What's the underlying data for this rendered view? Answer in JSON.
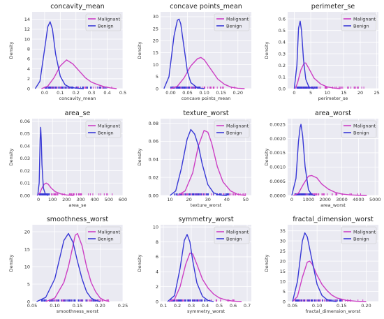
{
  "colors": {
    "malignant": "#cc3fc4",
    "benign": "#3838d6",
    "background": "#eaeaf2",
    "grid": "#ffffff"
  },
  "chart_data": [
    {
      "type": "line",
      "title": "concavity_mean",
      "xlabel": "concavity_mean",
      "ylabel": "Density",
      "xlim": [
        -0.08,
        0.5
      ],
      "ylim": [
        0,
        15.5
      ],
      "xticks": [
        "0.0",
        "0.1",
        "0.2",
        "0.3",
        "0.4",
        "0.5"
      ],
      "xtick_values": [
        0,
        0.1,
        0.2,
        0.3,
        0.4,
        0.5
      ],
      "yticks": [
        "0",
        "2",
        "4",
        "6",
        "8",
        "10",
        "12",
        "14"
      ],
      "ytick_values": [
        0,
        2,
        4,
        6,
        8,
        10,
        12,
        14
      ],
      "legend": "top-right",
      "grid": true,
      "series": [
        {
          "name": "Malignant",
          "x": [
            -0.02,
            0.02,
            0.06,
            0.1,
            0.14,
            0.18,
            0.22,
            0.26,
            0.3,
            0.34,
            0.38,
            0.42,
            0.46
          ],
          "y": [
            0,
            0.5,
            2.2,
            4.6,
            5.8,
            5.0,
            3.6,
            2.2,
            1.3,
            0.8,
            0.4,
            0.15,
            0
          ]
        },
        {
          "name": "Benign",
          "x": [
            -0.06,
            -0.03,
            0.0,
            0.02,
            0.035,
            0.05,
            0.07,
            0.1,
            0.13,
            0.16,
            0.2,
            0.25
          ],
          "y": [
            0,
            1.5,
            8.0,
            12.5,
            13.5,
            12.0,
            7.0,
            2.5,
            0.8,
            0.3,
            0.1,
            0
          ]
        }
      ],
      "rug": {
        "malignant": [
          0.02,
          0.43
        ],
        "benign": [
          0.0,
          0.41
        ]
      }
    },
    {
      "type": "line",
      "title": "concave points_mean",
      "xlabel": "concave points_mean",
      "ylabel": "Density",
      "xlim": [
        -0.03,
        0.24
      ],
      "ylim": [
        0,
        32
      ],
      "xticks": [
        "0.00",
        "0.05",
        "0.10",
        "0.15",
        "0.20"
      ],
      "xtick_values": [
        0,
        0.05,
        0.1,
        0.15,
        0.2
      ],
      "yticks": [
        "0",
        "5",
        "10",
        "15",
        "20",
        "25",
        "30"
      ],
      "ytick_values": [
        0,
        5,
        10,
        15,
        20,
        25,
        30
      ],
      "legend": "top-right",
      "grid": true,
      "series": [
        {
          "name": "Malignant",
          "x": [
            0.0,
            0.02,
            0.04,
            0.06,
            0.08,
            0.09,
            0.1,
            0.12,
            0.14,
            0.16,
            0.18,
            0.2,
            0.22
          ],
          "y": [
            0,
            1.0,
            4.5,
            9.5,
            12.5,
            13.0,
            12.0,
            8.0,
            4.0,
            1.8,
            0.6,
            0.15,
            0
          ]
        },
        {
          "name": "Benign",
          "x": [
            -0.02,
            -0.005,
            0.01,
            0.02,
            0.025,
            0.03,
            0.04,
            0.05,
            0.06,
            0.08,
            0.1
          ],
          "y": [
            0,
            5.0,
            22.0,
            28.5,
            29.0,
            27.0,
            17.0,
            7.0,
            2.5,
            0.3,
            0
          ]
        }
      ],
      "rug": {
        "malignant": [
          0.02,
          0.2
        ],
        "benign": [
          0.0,
          0.09
        ]
      }
    },
    {
      "type": "line",
      "title": "perimeter_se",
      "xlabel": "perimeter_se",
      "ylabel": "Density",
      "xlim": [
        -2,
        25.5
      ],
      "ylim": [
        0,
        0.66
      ],
      "xticks": [
        "0",
        "5",
        "10",
        "15",
        "20",
        "25"
      ],
      "xtick_values": [
        0,
        5,
        10,
        15,
        20,
        25
      ],
      "yticks": [
        "0.0",
        "0.1",
        "0.2",
        "0.3",
        "0.4",
        "0.5",
        "0.6"
      ],
      "ytick_values": [
        0,
        0.1,
        0.2,
        0.3,
        0.4,
        0.5,
        0.6
      ],
      "legend": "top-right",
      "grid": true,
      "series": [
        {
          "name": "Malignant",
          "x": [
            0.3,
            1.0,
            2.0,
            3.0,
            3.5,
            4.5,
            6.0,
            8.0,
            10.0,
            12.0,
            14.0
          ],
          "y": [
            0,
            0.05,
            0.16,
            0.22,
            0.22,
            0.17,
            0.09,
            0.04,
            0.015,
            0.005,
            0
          ]
        },
        {
          "name": "Benign",
          "x": [
            0.0,
            0.8,
            1.3,
            1.8,
            2.2,
            2.8,
            3.5,
            4.5,
            6.0
          ],
          "y": [
            0,
            0.2,
            0.52,
            0.58,
            0.5,
            0.25,
            0.08,
            0.01,
            0
          ]
        }
      ],
      "rug": {
        "malignant": [
          1.0,
          22.0
        ],
        "benign": [
          0.8,
          7.0
        ]
      }
    },
    {
      "type": "line",
      "title": "area_se",
      "xlabel": "area_se",
      "ylabel": "Density",
      "xlim": [
        -45,
        600
      ],
      "ylim": [
        0,
        0.062
      ],
      "xticks": [
        "0",
        "100",
        "200",
        "300",
        "400",
        "500",
        "600"
      ],
      "xtick_values": [
        0,
        100,
        200,
        300,
        400,
        500,
        600
      ],
      "yticks": [
        "0.00",
        "0.01",
        "0.02",
        "0.03",
        "0.04",
        "0.05",
        "0.06"
      ],
      "ytick_values": [
        0,
        0.01,
        0.02,
        0.03,
        0.04,
        0.05,
        0.06
      ],
      "legend": "top-right",
      "grid": true,
      "series": [
        {
          "name": "Malignant",
          "x": [
            -10,
            10,
            25,
            40,
            55,
            70,
            90,
            120,
            160,
            200,
            250
          ],
          "y": [
            0,
            0.002,
            0.006,
            0.009,
            0.01,
            0.009,
            0.006,
            0.003,
            0.0012,
            0.0004,
            0
          ]
        },
        {
          "name": "Benign",
          "x": [
            -5,
            5,
            12,
            16,
            20,
            25,
            35,
            50,
            70
          ],
          "y": [
            0,
            0.01,
            0.045,
            0.055,
            0.045,
            0.025,
            0.006,
            0.0008,
            0
          ]
        }
      ],
      "rug": {
        "malignant": [
          10,
          545
        ],
        "benign": [
          6,
          80
        ]
      }
    },
    {
      "type": "line",
      "title": "texture_worst",
      "xlabel": "texture_worst",
      "ylabel": "Density",
      "xlim": [
        5,
        53
      ],
      "ylim": [
        0,
        0.085
      ],
      "xticks": [
        "10",
        "20",
        "30",
        "40",
        "50"
      ],
      "xtick_values": [
        10,
        20,
        30,
        40,
        50
      ],
      "yticks": [
        "0.00",
        "0.02",
        "0.04",
        "0.06",
        "0.08"
      ],
      "ytick_values": [
        0,
        0.02,
        0.04,
        0.06,
        0.08
      ],
      "legend": "top-right",
      "grid": true,
      "series": [
        {
          "name": "Malignant",
          "x": [
            14,
            18,
            22,
            25,
            28,
            30,
            32,
            35,
            38,
            42,
            46,
            50
          ],
          "y": [
            0,
            0.005,
            0.025,
            0.055,
            0.072,
            0.07,
            0.058,
            0.032,
            0.015,
            0.005,
            0.001,
            0
          ]
        },
        {
          "name": "Benign",
          "x": [
            10,
            13,
            16,
            19,
            21,
            23,
            25,
            27,
            30,
            33,
            36,
            40
          ],
          "y": [
            0,
            0.005,
            0.03,
            0.062,
            0.073,
            0.068,
            0.055,
            0.035,
            0.012,
            0.003,
            0.0005,
            0
          ]
        }
      ],
      "rug": {
        "malignant": [
          16,
          50
        ],
        "benign": [
          12,
          42
        ]
      }
    },
    {
      "type": "line",
      "title": "area_worst",
      "xlabel": "area_worst",
      "ylabel": "Density",
      "xlim": [
        -250,
        5200
      ],
      "ylim": [
        0,
        0.0027
      ],
      "xticks": [
        "0",
        "1000",
        "2000",
        "3000",
        "4000",
        "5000"
      ],
      "xtick_values": [
        0,
        1000,
        2000,
        3000,
        4000,
        5000
      ],
      "yticks": [
        "0.0000",
        "0.0005",
        "0.0010",
        "0.0015",
        "0.0020",
        "0.0025"
      ],
      "ytick_values": [
        0,
        0.0005,
        0.001,
        0.0015,
        0.002,
        0.0025
      ],
      "legend": "top-right",
      "grid": true,
      "series": [
        {
          "name": "Malignant",
          "x": [
            100,
            400,
            700,
            1000,
            1200,
            1500,
            1800,
            2200,
            2600,
            3000,
            3500,
            4000,
            4500
          ],
          "y": [
            0,
            8e-05,
            0.0004,
            0.00068,
            0.0007,
            0.00062,
            0.0004,
            0.00022,
            0.00011,
            5e-05,
            2e-05,
            6e-06,
            0
          ]
        },
        {
          "name": "Benign",
          "x": [
            0,
            250,
            400,
            500,
            550,
            650,
            800,
            1000,
            1200,
            1400
          ],
          "y": [
            0,
            0.0006,
            0.0019,
            0.0024,
            0.0025,
            0.0021,
            0.001,
            0.0002,
            2e-05,
            0
          ]
        }
      ],
      "rug": {
        "malignant": [
          200,
          4300
        ],
        "benign": [
          180,
          1250
        ]
      }
    },
    {
      "type": "line",
      "title": "smoothness_worst",
      "xlabel": "smoothness_worst",
      "ylabel": "Density",
      "xlim": [
        0.05,
        0.25
      ],
      "ylim": [
        0,
        22
      ],
      "xticks": [
        "0.05",
        "0.10",
        "0.15",
        "0.20",
        "0.25"
      ],
      "xtick_values": [
        0.05,
        0.1,
        0.15,
        0.2,
        0.25
      ],
      "yticks": [
        "0",
        "5",
        "10",
        "15",
        "20"
      ],
      "ytick_values": [
        0,
        5,
        10,
        15,
        20
      ],
      "legend": "top-right",
      "grid": true,
      "series": [
        {
          "name": "Malignant",
          "x": [
            0.08,
            0.1,
            0.12,
            0.13,
            0.14,
            0.145,
            0.15,
            0.16,
            0.17,
            0.18,
            0.19,
            0.2,
            0.21,
            0.22
          ],
          "y": [
            0,
            1.0,
            5.5,
            10.0,
            16.0,
            19.0,
            19.5,
            16.0,
            10.0,
            5.5,
            2.8,
            1.0,
            0.3,
            0
          ]
        },
        {
          "name": "Benign",
          "x": [
            0.06,
            0.08,
            0.1,
            0.11,
            0.12,
            0.13,
            0.14,
            0.15,
            0.16,
            0.17,
            0.18,
            0.19,
            0.2
          ],
          "y": [
            0,
            1.2,
            6.5,
            12.0,
            17.5,
            19.5,
            17.0,
            11.5,
            6.5,
            2.8,
            1.0,
            0.3,
            0
          ]
        }
      ],
      "rug": {
        "malignant": [
          0.09,
          0.22
        ],
        "benign": [
          0.07,
          0.2
        ]
      }
    },
    {
      "type": "line",
      "title": "symmetry_worst",
      "xlabel": "symmetry_worst",
      "ylabel": "Density",
      "xlim": [
        0.08,
        0.73
      ],
      "ylim": [
        0,
        10.3
      ],
      "xticks": [
        "0.1",
        "0.2",
        "0.3",
        "0.4",
        "0.5",
        "0.6",
        "0.7"
      ],
      "xtick_values": [
        0.1,
        0.2,
        0.3,
        0.4,
        0.5,
        0.6,
        0.7
      ],
      "yticks": [
        "0",
        "2",
        "4",
        "6",
        "8",
        "10"
      ],
      "ytick_values": [
        0,
        2,
        4,
        6,
        8,
        10
      ],
      "legend": "top-right",
      "grid": true,
      "series": [
        {
          "name": "Malignant",
          "x": [
            0.14,
            0.18,
            0.22,
            0.26,
            0.29,
            0.31,
            0.34,
            0.38,
            0.42,
            0.46,
            0.5,
            0.55,
            0.6,
            0.66
          ],
          "y": [
            0,
            0.3,
            2.0,
            5.0,
            6.5,
            6.4,
            5.0,
            3.0,
            1.8,
            1.0,
            0.5,
            0.2,
            0.05,
            0
          ]
        },
        {
          "name": "Benign",
          "x": [
            0.13,
            0.18,
            0.22,
            0.25,
            0.27,
            0.29,
            0.31,
            0.34,
            0.38,
            0.42,
            0.46
          ],
          "y": [
            0,
            0.8,
            4.5,
            8.2,
            9.0,
            8.0,
            5.5,
            2.5,
            0.7,
            0.15,
            0
          ]
        }
      ],
      "rug": {
        "malignant": [
          0.16,
          0.66
        ],
        "benign": [
          0.15,
          0.42
        ]
      }
    },
    {
      "type": "line",
      "title": "fractal_dimension_worst",
      "xlabel": "fractal_dimension_worst",
      "ylabel": "Density",
      "xlim": [
        0.04,
        0.225
      ],
      "ylim": [
        0,
        38
      ],
      "xticks": [
        "0.05",
        "0.10",
        "0.15",
        "0.20"
      ],
      "xtick_values": [
        0.05,
        0.1,
        0.15,
        0.2
      ],
      "yticks": [
        "0",
        "5",
        "10",
        "15",
        "20",
        "25",
        "30",
        "35"
      ],
      "ytick_values": [
        0,
        5,
        10,
        15,
        20,
        25,
        30,
        35
      ],
      "legend": "top-right",
      "grid": true,
      "series": [
        {
          "name": "Malignant",
          "x": [
            0.05,
            0.06,
            0.07,
            0.08,
            0.085,
            0.09,
            0.1,
            0.11,
            0.12,
            0.13,
            0.14,
            0.16,
            0.18,
            0.2
          ],
          "y": [
            0,
            2.5,
            12.0,
            19.5,
            20.0,
            18.5,
            13.0,
            8.5,
            5.5,
            3.2,
            1.8,
            0.6,
            0.15,
            0
          ]
        },
        {
          "name": "Benign",
          "x": [
            0.05,
            0.06,
            0.07,
            0.075,
            0.08,
            0.09,
            0.1,
            0.11,
            0.12,
            0.13,
            0.14
          ],
          "y": [
            0,
            10.0,
            30.0,
            34.0,
            32.0,
            20.0,
            8.5,
            3.0,
            1.0,
            0.3,
            0
          ]
        }
      ],
      "rug": {
        "malignant": [
          0.055,
          0.2
        ],
        "benign": [
          0.055,
          0.155
        ]
      }
    }
  ]
}
